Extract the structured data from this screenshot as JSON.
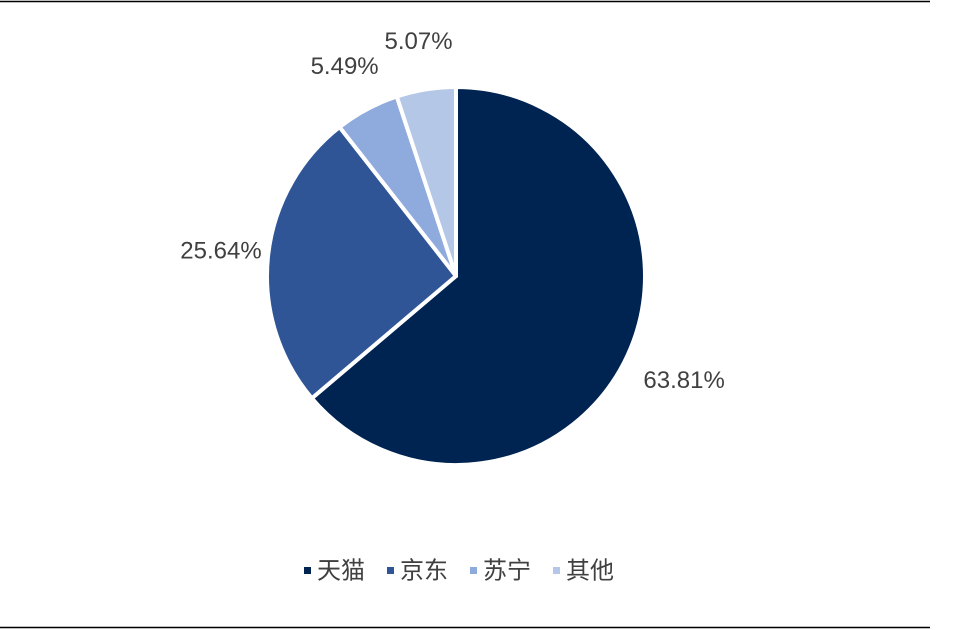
{
  "chart_data": {
    "type": "pie",
    "categories": [
      "天猫",
      "京东",
      "苏宁",
      "其他"
    ],
    "values": [
      63.81,
      25.64,
      5.49,
      5.07
    ],
    "value_labels": [
      "63.81%",
      "25.64%",
      "5.49%",
      "5.07%"
    ],
    "colors": [
      "#002452",
      "#2f5597",
      "#8faadc",
      "#b4c7e7"
    ],
    "legend": "bottom"
  }
}
